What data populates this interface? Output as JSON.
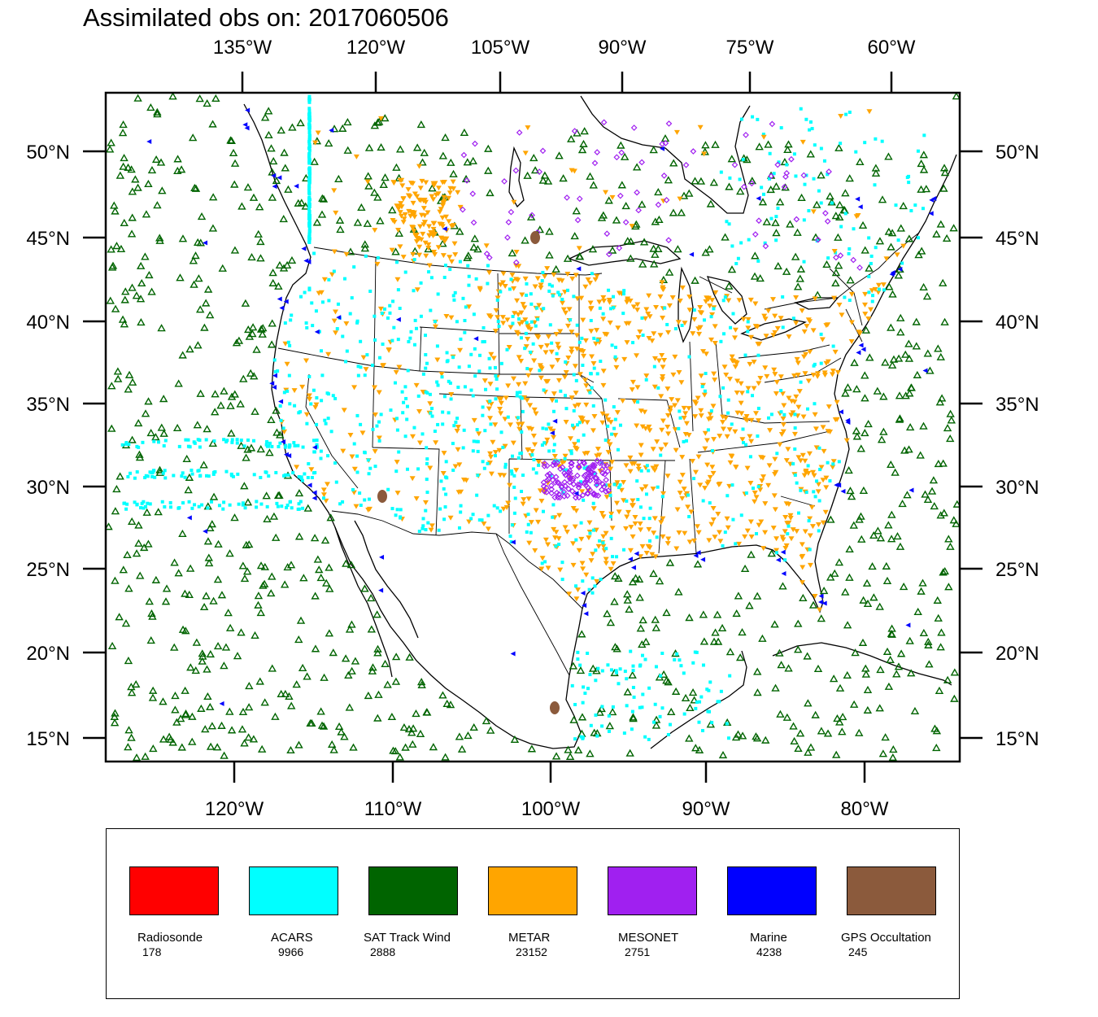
{
  "title": "Assimilated obs on: 2017060506",
  "map": {
    "top_lon_labels": [
      "135°W",
      "120°W",
      "105°W",
      "90°W",
      "75°W",
      "60°W"
    ],
    "bottom_lon_labels": [
      "120°W",
      "110°W",
      "100°W",
      "90°W",
      "80°W"
    ],
    "lat_labels": [
      "50°N",
      "45°N",
      "40°N",
      "35°N",
      "30°N",
      "25°N",
      "20°N",
      "15°N"
    ],
    "lon_range_deg": [
      -128,
      -74
    ],
    "lat_range_deg": [
      14,
      53
    ]
  },
  "legend": {
    "items": [
      {
        "name": "Radiosonde",
        "count": "178",
        "color": "#ff0000",
        "marker": "circle"
      },
      {
        "name": "ACARS",
        "count": "9966",
        "color": "#00ffff",
        "marker": "square"
      },
      {
        "name": "SAT Track Wind",
        "count": "2888",
        "color": "#006400",
        "marker": "triangle-up-hollow"
      },
      {
        "name": "METAR",
        "count": "23152",
        "color": "#ffa500",
        "marker": "triangle-down"
      },
      {
        "name": "MESONET",
        "count": "2751",
        "color": "#a020f0",
        "marker": "diamond"
      },
      {
        "name": "Marine",
        "count": "4238",
        "color": "#0000ff",
        "marker": "triangle-left"
      },
      {
        "name": "GPS Occultation",
        "count": "245",
        "color": "#8b5a3c",
        "marker": "blob"
      }
    ]
  }
}
